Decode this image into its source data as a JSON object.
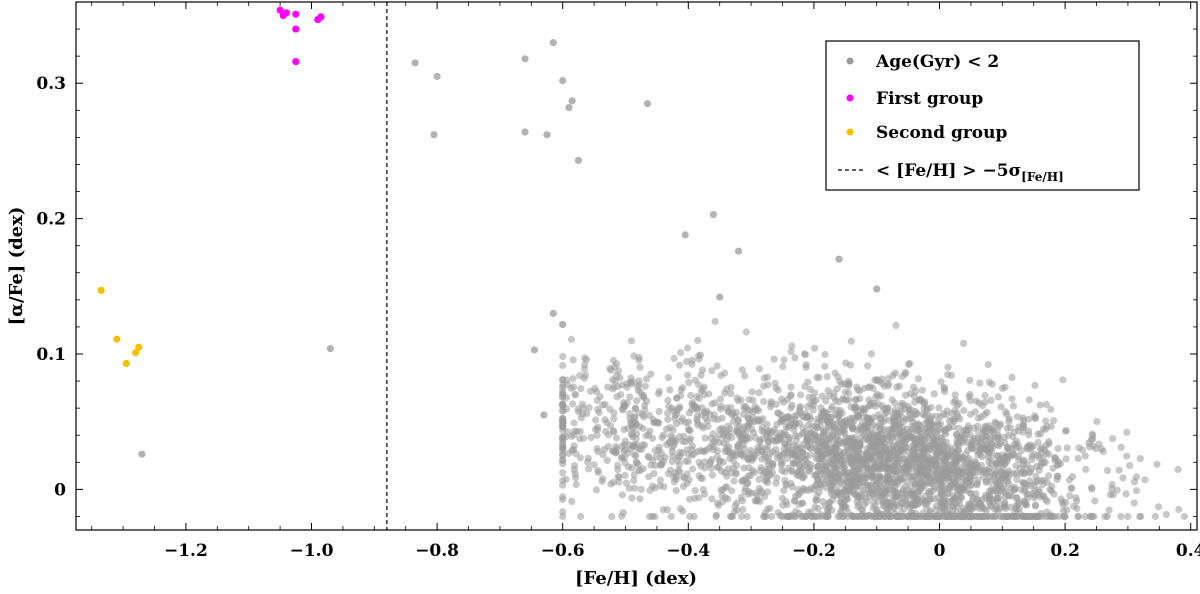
{
  "chart_data": {
    "type": "scatter",
    "xlabel": "[Fe/H] (dex)",
    "ylabel": "[α/Fe] (dex)",
    "xlim": [
      -1.375,
      0.41
    ],
    "ylim": [
      -0.03,
      0.36
    ],
    "x_ticks": [
      -1.2,
      -1.0,
      -0.8,
      -0.6,
      -0.4,
      -0.2,
      0,
      0.2,
      0.4
    ],
    "x_tick_labels": [
      "−1.2",
      "−1.0",
      "−0.8",
      "−0.6",
      "−0.4",
      "−0.2",
      "0",
      "0.2",
      "0.4"
    ],
    "y_ticks": [
      0,
      0.1,
      0.2,
      0.3
    ],
    "y_tick_labels": [
      "0",
      "0.1",
      "0.2",
      "0.3"
    ],
    "legend_position": "top-right",
    "threshold_line": {
      "x": -0.88,
      "label": "< [Fe/H] > −5σ",
      "subscript": "[Fe/H]",
      "color": "#000000",
      "style": "dashed"
    },
    "series": [
      {
        "name": "Age(Gyr) < 2",
        "color": "#9a9a9a",
        "sparse_points": [
          [
            -0.835,
            0.315
          ],
          [
            -0.8,
            0.305
          ],
          [
            -0.805,
            0.262
          ],
          [
            -0.615,
            0.33
          ],
          [
            -0.66,
            0.318
          ],
          [
            -0.6,
            0.302
          ],
          [
            -0.585,
            0.287
          ],
          [
            -0.59,
            0.282
          ],
          [
            -0.465,
            0.285
          ],
          [
            -0.66,
            0.264
          ],
          [
            -0.625,
            0.262
          ],
          [
            -0.575,
            0.243
          ],
          [
            -0.36,
            0.203
          ],
          [
            -0.405,
            0.188
          ],
          [
            -0.32,
            0.176
          ],
          [
            -0.16,
            0.17
          ],
          [
            -0.35,
            0.142
          ],
          [
            -0.1,
            0.148
          ],
          [
            -0.615,
            0.13
          ],
          [
            -0.645,
            0.103
          ],
          [
            -0.97,
            0.104
          ],
          [
            -1.27,
            0.026
          ],
          [
            -0.63,
            0.055
          ],
          [
            -0.6,
            0.038
          ],
          [
            -0.58,
            0.07
          ]
        ],
        "dense_cluster": {
          "point_count": 3200,
          "description": "dense cloud of stars",
          "fe_h_range": [
            -0.6,
            0.39
          ],
          "alpha_fe_range": [
            -0.02,
            0.13
          ],
          "trend": "alpha/Fe decreases with increasing Fe/H"
        }
      },
      {
        "name": "First group",
        "color": "#ff00ff",
        "points": [
          [
            -1.05,
            0.354
          ],
          [
            -1.045,
            0.35
          ],
          [
            -1.04,
            0.352
          ],
          [
            -1.025,
            0.351
          ],
          [
            -0.99,
            0.347
          ],
          [
            -0.985,
            0.349
          ],
          [
            -1.025,
            0.34
          ],
          [
            -1.025,
            0.316
          ]
        ]
      },
      {
        "name": "Second group",
        "color": "#f5c000",
        "points": [
          [
            -1.335,
            0.147
          ],
          [
            -1.31,
            0.111
          ],
          [
            -1.275,
            0.105
          ],
          [
            -1.28,
            0.101
          ],
          [
            -1.295,
            0.093
          ]
        ]
      }
    ]
  }
}
